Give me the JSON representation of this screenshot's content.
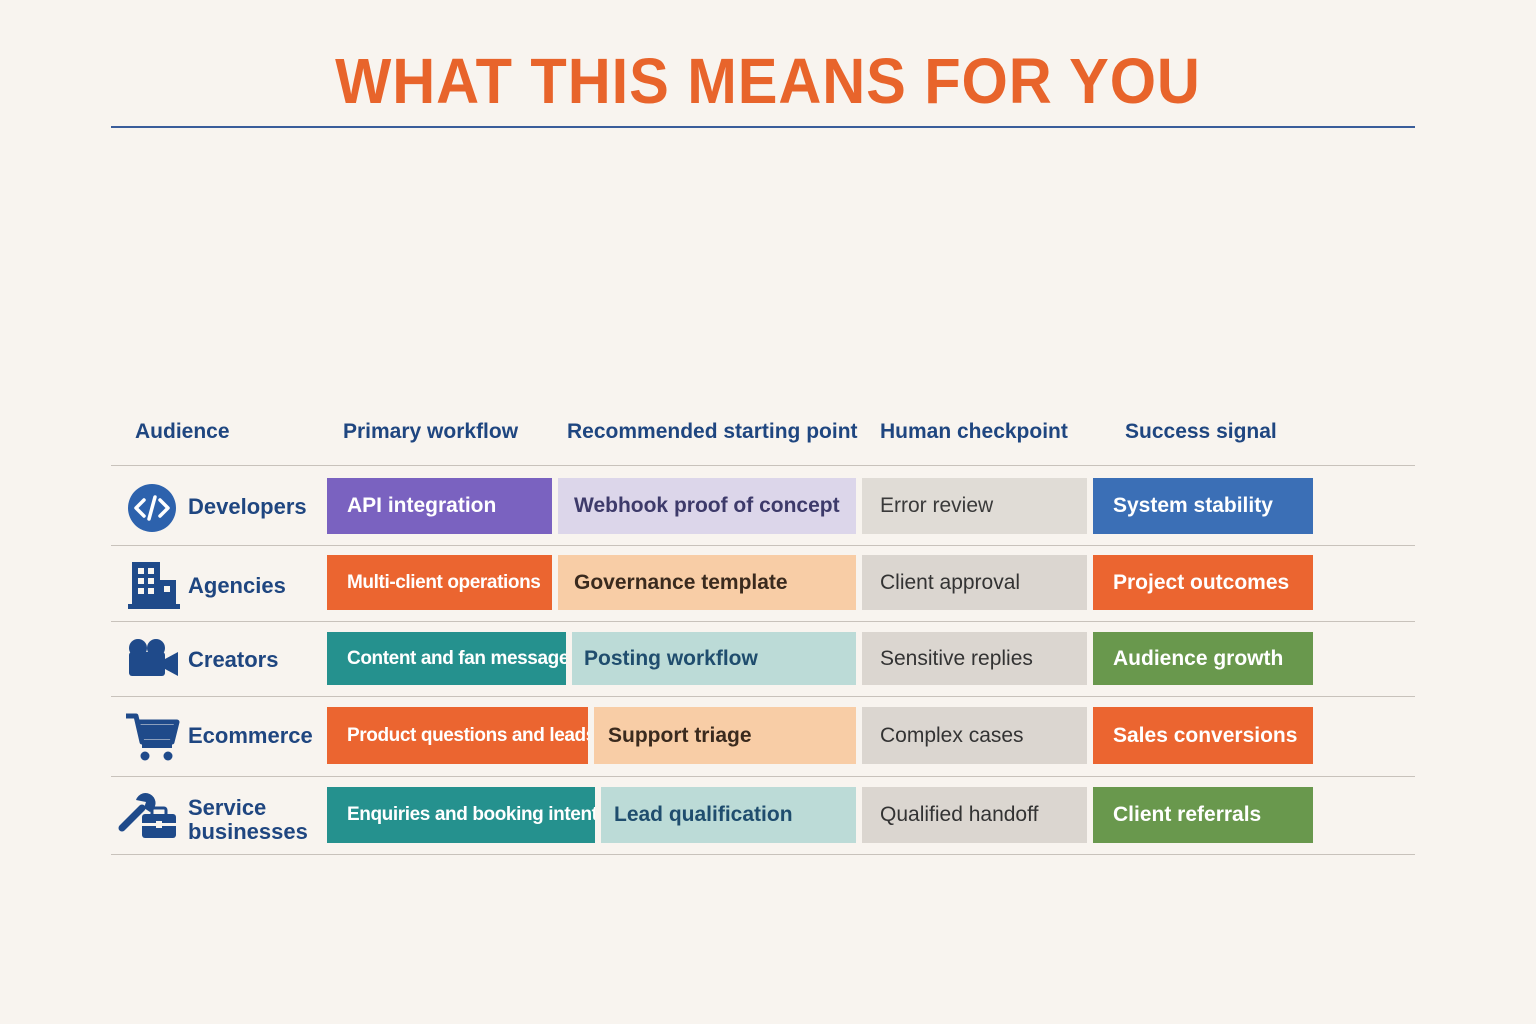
{
  "title": "WHAT THIS MEANS FOR YOU",
  "headers": {
    "audience": "Audience",
    "workflow": "Primary workflow",
    "start": "Recommended starting point",
    "checkpoint": "Human checkpoint",
    "signal": "Success signal"
  },
  "rows": [
    {
      "audience": "Developers",
      "icon": "code-icon",
      "workflow": "API integration",
      "start": "Webhook proof of concept",
      "checkpoint": "Error review",
      "signal": "System stability"
    },
    {
      "audience": "Agencies",
      "icon": "building-icon",
      "workflow": "Multi-client operations",
      "start": "Governance template",
      "checkpoint": "Client approval",
      "signal": "Project outcomes"
    },
    {
      "audience": "Creators",
      "icon": "video-camera-icon",
      "workflow": "Content and fan messages",
      "start": "Posting workflow",
      "checkpoint": "Sensitive replies",
      "signal": "Audience growth"
    },
    {
      "audience": "Ecommerce",
      "icon": "shopping-cart-icon",
      "workflow": "Product questions and leads",
      "start": "Support triage",
      "checkpoint": "Complex cases",
      "signal": "Sales conversions"
    },
    {
      "audience_line1": "Service",
      "audience_line2": "businesses",
      "icon": "wrench-briefcase-icon",
      "workflow": "Enquiries and booking intent",
      "start": "Lead qualification",
      "checkpoint": "Qualified handoff",
      "signal": "Client referrals"
    }
  ],
  "colors": {
    "title": "#e8642b",
    "heading": "#1f4680",
    "purple": "#7a62c0",
    "orange": "#eb6530",
    "teal": "#25918e",
    "blue": "#3b6fb6",
    "green": "#69984d"
  }
}
